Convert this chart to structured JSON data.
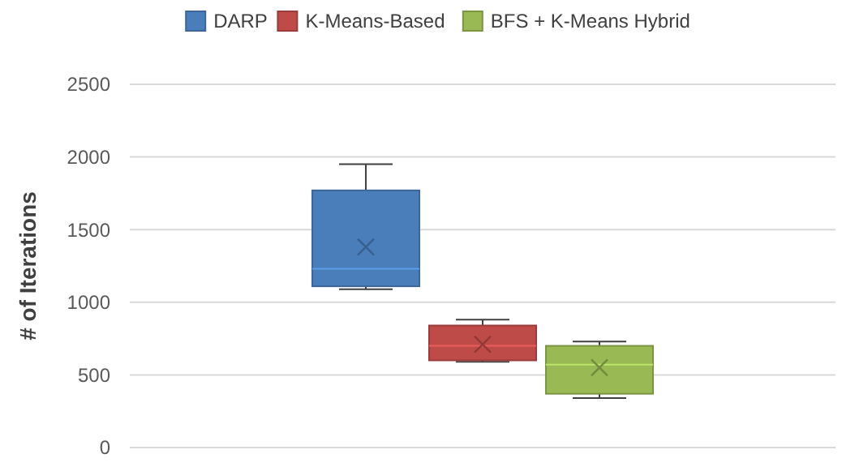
{
  "chart_data": {
    "type": "box",
    "ylabel": "# of Iterations",
    "categories": [
      null
    ],
    "ylim": [
      0,
      2500
    ],
    "yticks": [
      0,
      500,
      1000,
      1500,
      2000,
      2500
    ],
    "grid": "y",
    "legend": "top",
    "series": [
      {
        "name": "DARP",
        "color": "#4a7ebb",
        "boxes": [
          {
            "low": 1090,
            "q1": 1110,
            "median": 1230,
            "q3": 1770,
            "high": 1950,
            "mean": 1380
          }
        ]
      },
      {
        "name": "K-Means-Based",
        "color": "#be4b48",
        "boxes": [
          {
            "low": 590,
            "q1": 600,
            "median": 700,
            "q3": 840,
            "high": 880,
            "mean": 710
          }
        ]
      },
      {
        "name": "BFS + K-Means Hybrid",
        "color": "#98b954",
        "boxes": [
          {
            "low": 340,
            "q1": 370,
            "median": 570,
            "q3": 700,
            "high": 730,
            "mean": 550
          }
        ]
      }
    ]
  }
}
